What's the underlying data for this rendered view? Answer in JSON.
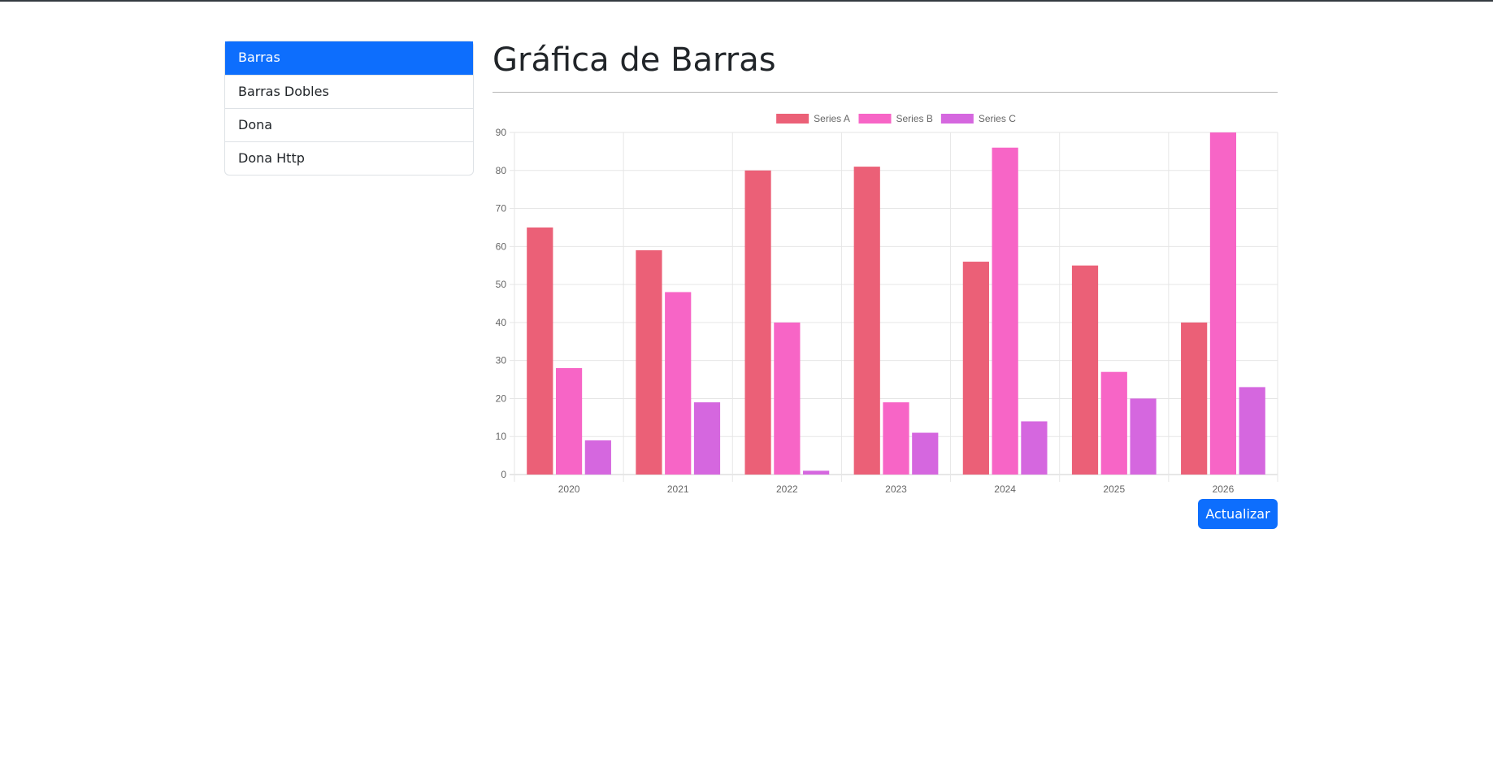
{
  "sidebar": {
    "items": [
      {
        "label": "Barras",
        "active": true
      },
      {
        "label": "Barras Dobles",
        "active": false
      },
      {
        "label": "Dona",
        "active": false
      },
      {
        "label": "Dona Http",
        "active": false
      }
    ]
  },
  "main": {
    "title": "Gráfica de Barras",
    "update_button": "Actualizar"
  },
  "colors": {
    "primary": "#0d6efd",
    "series_a": "#eb6077",
    "series_b": "#f765c6",
    "series_c": "#d567df"
  },
  "chart_data": {
    "type": "bar",
    "categories": [
      "2020",
      "2021",
      "2022",
      "2023",
      "2024",
      "2025",
      "2026"
    ],
    "series": [
      {
        "name": "Series A",
        "values": [
          65,
          59,
          80,
          81,
          56,
          55,
          40
        ],
        "color": "#eb6077"
      },
      {
        "name": "Series B",
        "values": [
          28,
          48,
          40,
          19,
          86,
          27,
          90
        ],
        "color": "#f765c6"
      },
      {
        "name": "Series C",
        "values": [
          9,
          19,
          1,
          11,
          14,
          20,
          23
        ],
        "color": "#d567df"
      }
    ],
    "ylim": [
      0,
      90
    ],
    "yticks": [
      0,
      10,
      20,
      30,
      40,
      50,
      60,
      70,
      80,
      90
    ],
    "grid": true,
    "legend": "top"
  }
}
